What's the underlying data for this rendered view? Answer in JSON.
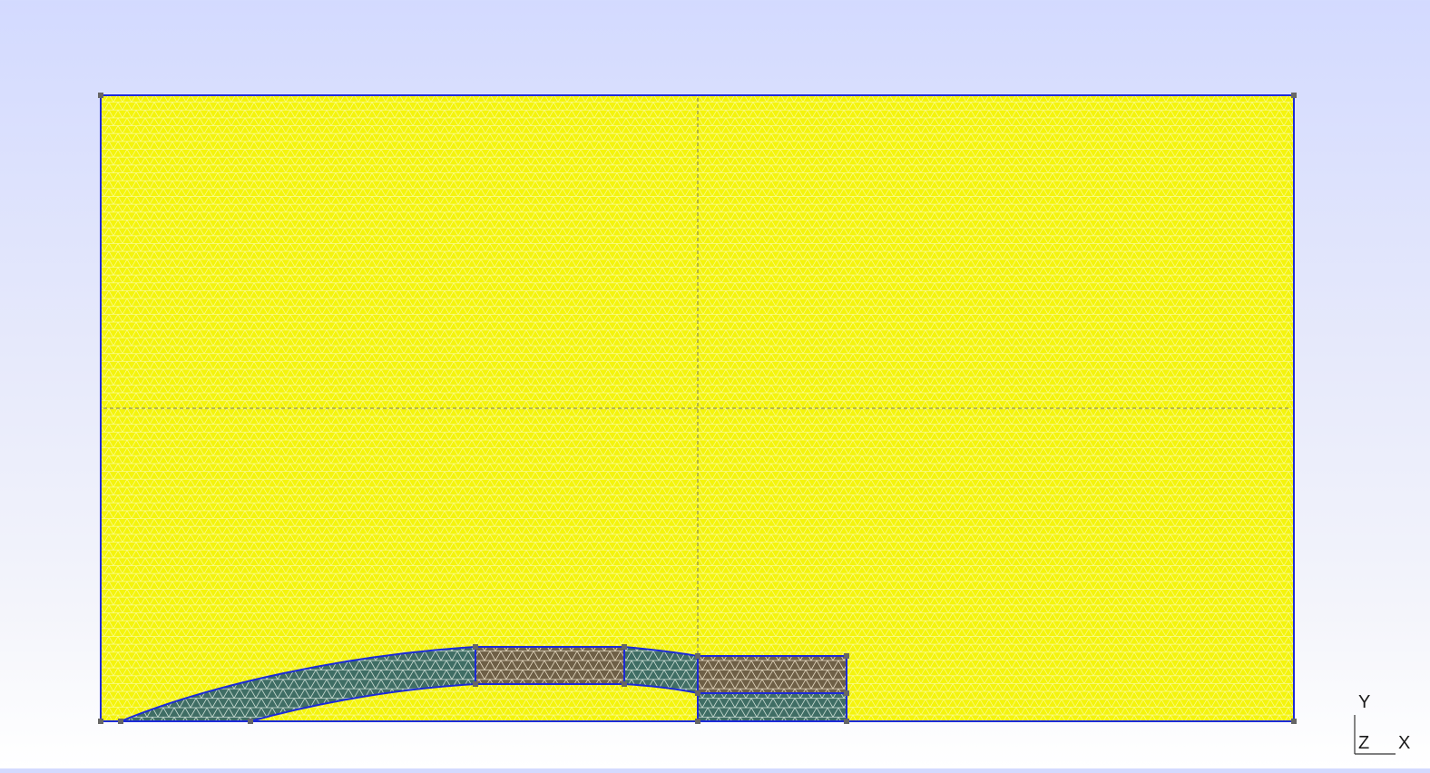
{
  "viewport": {
    "background_top": "#d3daff",
    "background_bottom": "#ffffff"
  },
  "colors": {
    "outer_mesh_fill": "#f4f40c",
    "outer_mesh_lines": "#ffff66",
    "boundary": "#1d2ad8",
    "vertex": "#666666",
    "axis_dashes": "#7a7a55",
    "teal_region": "#3f6d64",
    "brown_region": "#6e5f46",
    "inner_mesh_lines": "#c8d8c8"
  },
  "axis_triad": {
    "y_label": "Y",
    "z_label": "Z",
    "x_label": "X"
  }
}
